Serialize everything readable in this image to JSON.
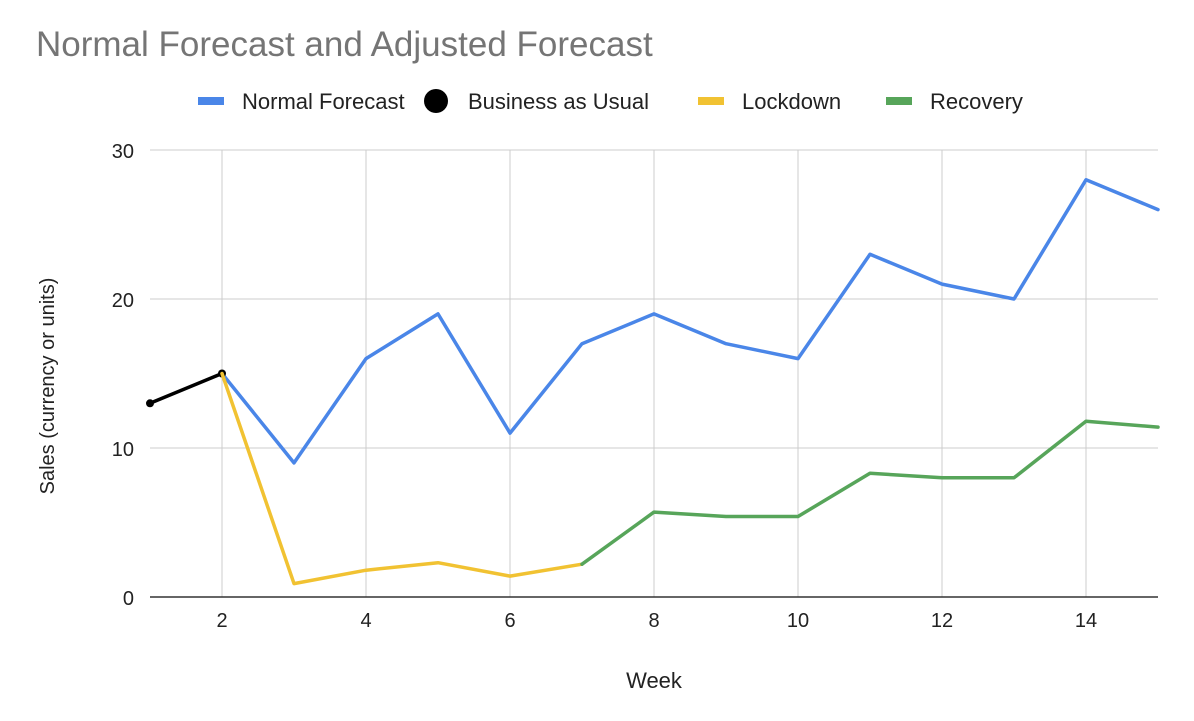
{
  "chart_data": {
    "type": "line",
    "title": "Normal Forecast and Adjusted Forecast",
    "xlabel": "Week",
    "ylabel": "Sales (currency or units)",
    "xlim": [
      1,
      15
    ],
    "ylim": [
      0,
      30
    ],
    "x_ticks": [
      2,
      4,
      6,
      8,
      10,
      12,
      14
    ],
    "y_ticks": [
      0,
      10,
      20,
      30
    ],
    "grid": true,
    "legend_position": "top",
    "series": [
      {
        "name": "Normal Forecast",
        "color": "#4a86e8",
        "marker": "square",
        "x": [
          2,
          3,
          4,
          5,
          6,
          7,
          8,
          9,
          10,
          11,
          12,
          13,
          14,
          15
        ],
        "y": [
          15,
          9,
          16,
          19,
          11,
          17,
          19,
          17,
          16,
          23,
          21,
          20,
          28,
          26
        ]
      },
      {
        "name": "Business as Usual",
        "color": "#000000",
        "marker": "circle",
        "x": [
          1,
          2
        ],
        "y": [
          13,
          15
        ]
      },
      {
        "name": "Lockdown",
        "color": "#f1c232",
        "marker": "square",
        "x": [
          2,
          3,
          4,
          5,
          6,
          7
        ],
        "y": [
          15,
          0.9,
          1.8,
          2.3,
          1.4,
          2.2
        ]
      },
      {
        "name": "Recovery",
        "color": "#57a55a",
        "marker": "square",
        "x": [
          7,
          8,
          9,
          10,
          11,
          12,
          13,
          14,
          15
        ],
        "y": [
          2.2,
          5.7,
          5.4,
          5.4,
          8.3,
          8.0,
          8.0,
          11.8,
          11.4
        ]
      }
    ]
  }
}
